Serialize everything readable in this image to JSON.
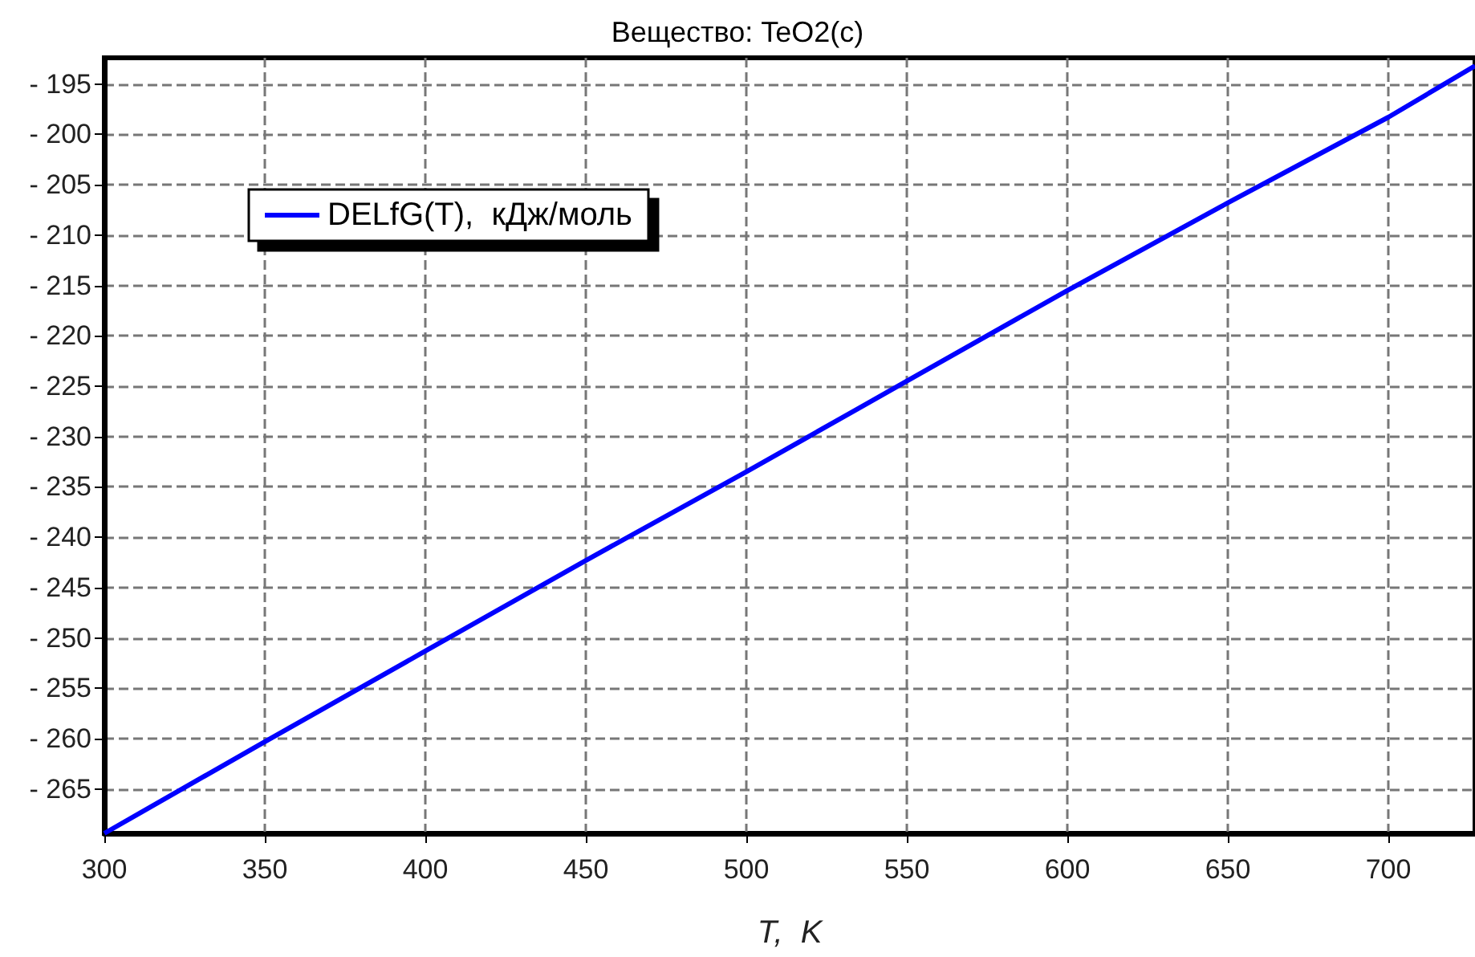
{
  "chart_data": {
    "type": "line",
    "title": "Вещество: TeO2(c)",
    "xlabel": "T,  K",
    "x": [
      300,
      350,
      400,
      450,
      500,
      550,
      600,
      650,
      700,
      727
    ],
    "series": [
      {
        "name": "DELfG(T),  кДж/моль",
        "color": "#0000ff",
        "values": [
          -269.4,
          -260.3,
          -251.3,
          -242.3,
          -233.5,
          -224.5,
          -215.5,
          -206.8,
          -198.3,
          -193.2
        ]
      }
    ],
    "xlim": [
      300,
      727
    ],
    "xticks": [
      300,
      350,
      400,
      450,
      500,
      550,
      600,
      650,
      700
    ],
    "ylim": [
      -269.4,
      -192.4
    ],
    "yticks": [
      {
        "value": -265,
        "label": "- 265"
      },
      {
        "value": -260,
        "label": "- 260"
      },
      {
        "value": -255,
        "label": "- 255"
      },
      {
        "value": -250,
        "label": "- 250"
      },
      {
        "value": -245,
        "label": "- 245"
      },
      {
        "value": -240,
        "label": "- 240"
      },
      {
        "value": -235,
        "label": "- 235"
      },
      {
        "value": -230,
        "label": "- 230"
      },
      {
        "value": -225,
        "label": "- 225"
      },
      {
        "value": -220,
        "label": "- 220"
      },
      {
        "value": -215,
        "label": "- 215"
      },
      {
        "value": -210,
        "label": "- 210"
      },
      {
        "value": -205,
        "label": "- 205"
      },
      {
        "value": -200,
        "label": "- 200"
      },
      {
        "value": -195,
        "label": "- 195"
      }
    ],
    "grid": true,
    "legend": "top left",
    "marker": "none",
    "line_style": "solid"
  }
}
